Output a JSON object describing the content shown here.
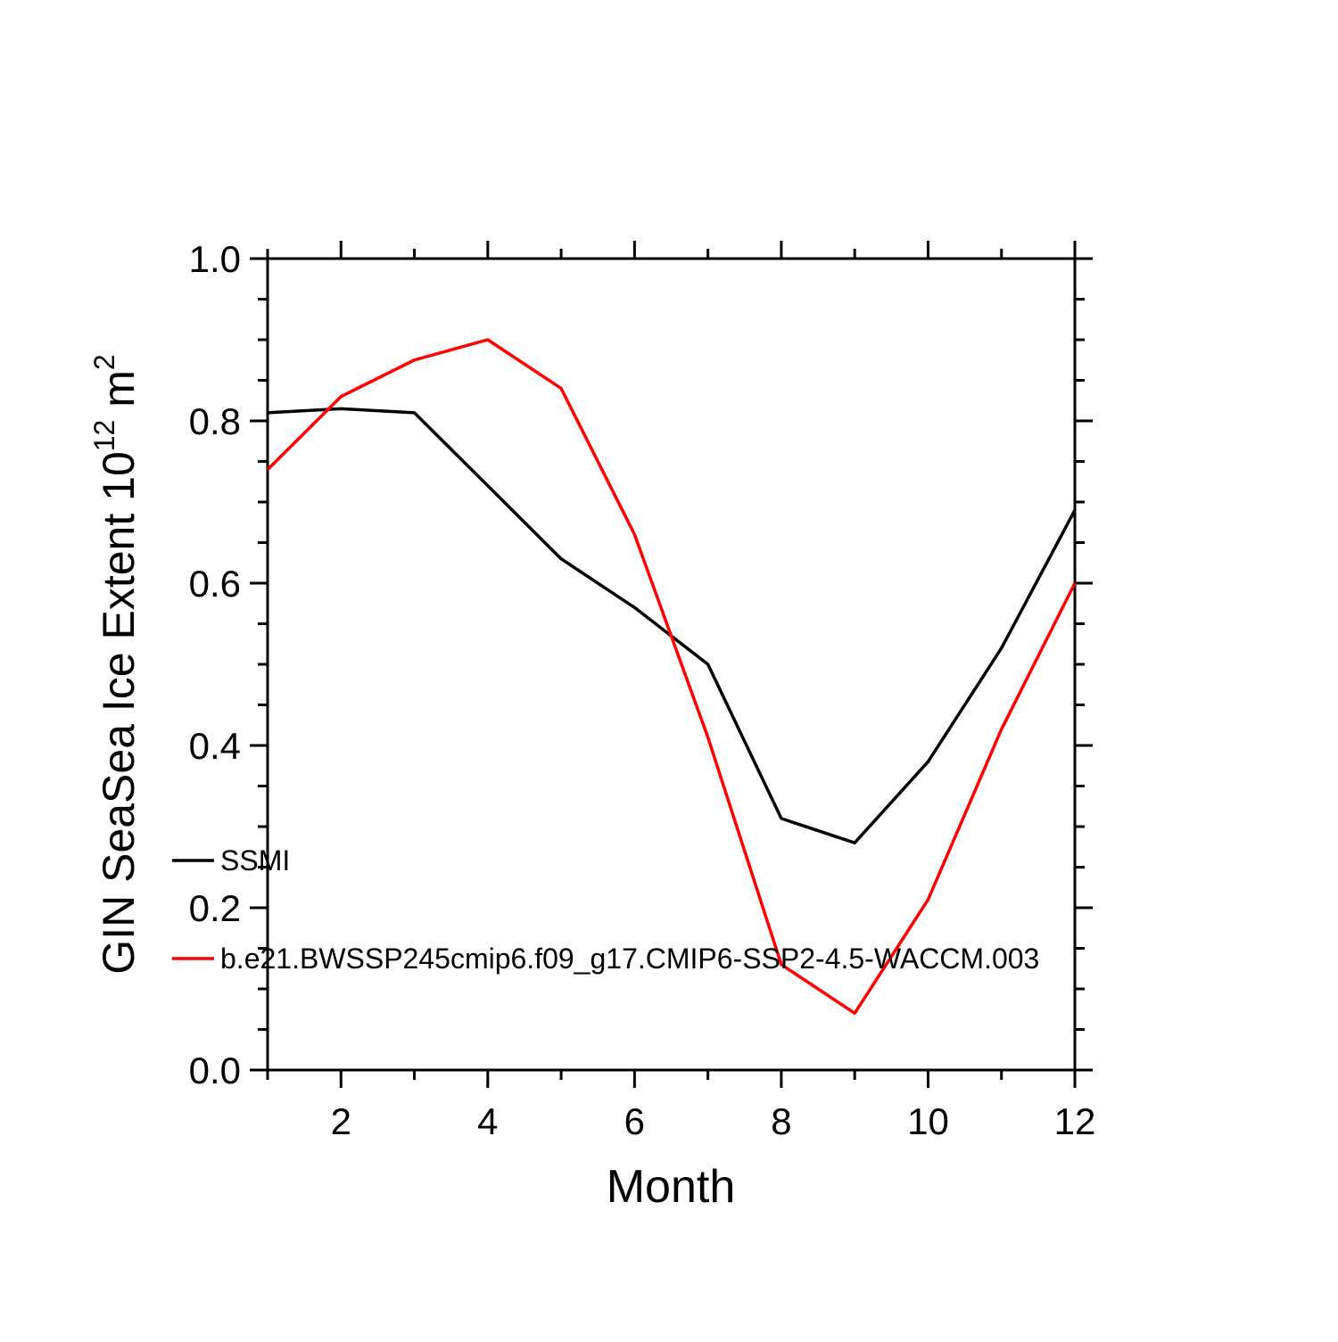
{
  "chart_data": {
    "type": "line",
    "title": "",
    "xlabel": "Month",
    "ylabel": "GIN SeaSea Ice Extent 10^12 m^2",
    "ylabel_parts": {
      "base": "GIN SeaSea Ice Extent 10",
      "exp1": "12",
      "mid": " m",
      "exp2": "2"
    },
    "x": [
      1,
      2,
      3,
      4,
      5,
      6,
      7,
      8,
      9,
      10,
      11,
      12
    ],
    "xlim": [
      1,
      12
    ],
    "ylim": [
      0.0,
      1.0
    ],
    "x_major_ticks": [
      2,
      4,
      6,
      8,
      10,
      12
    ],
    "x_tick_labels": [
      "2",
      "4",
      "6",
      "8",
      "10",
      "12"
    ],
    "x_minor_step": 1,
    "y_major_ticks": [
      0.0,
      0.2,
      0.4,
      0.6,
      0.8,
      1.0
    ],
    "y_tick_labels": [
      "0.0",
      "0.2",
      "0.4",
      "0.6",
      "0.8",
      "1.0"
    ],
    "y_minor_step": 0.05,
    "grid": false,
    "legend_position": "inside-left",
    "series": [
      {
        "name": "SSMI",
        "color": "#000000",
        "values": [
          0.81,
          0.815,
          0.81,
          0.72,
          0.63,
          0.57,
          0.5,
          0.31,
          0.28,
          0.38,
          0.52,
          0.69
        ]
      },
      {
        "name": "b.e21.BWSSP245cmip6.f09_g17.CMIP6-SSP2-4.5-WACCM.003",
        "color": "#ff0000",
        "values": [
          0.74,
          0.83,
          0.875,
          0.9,
          0.84,
          0.66,
          0.41,
          0.13,
          0.07,
          0.21,
          0.42,
          0.6
        ]
      }
    ]
  }
}
